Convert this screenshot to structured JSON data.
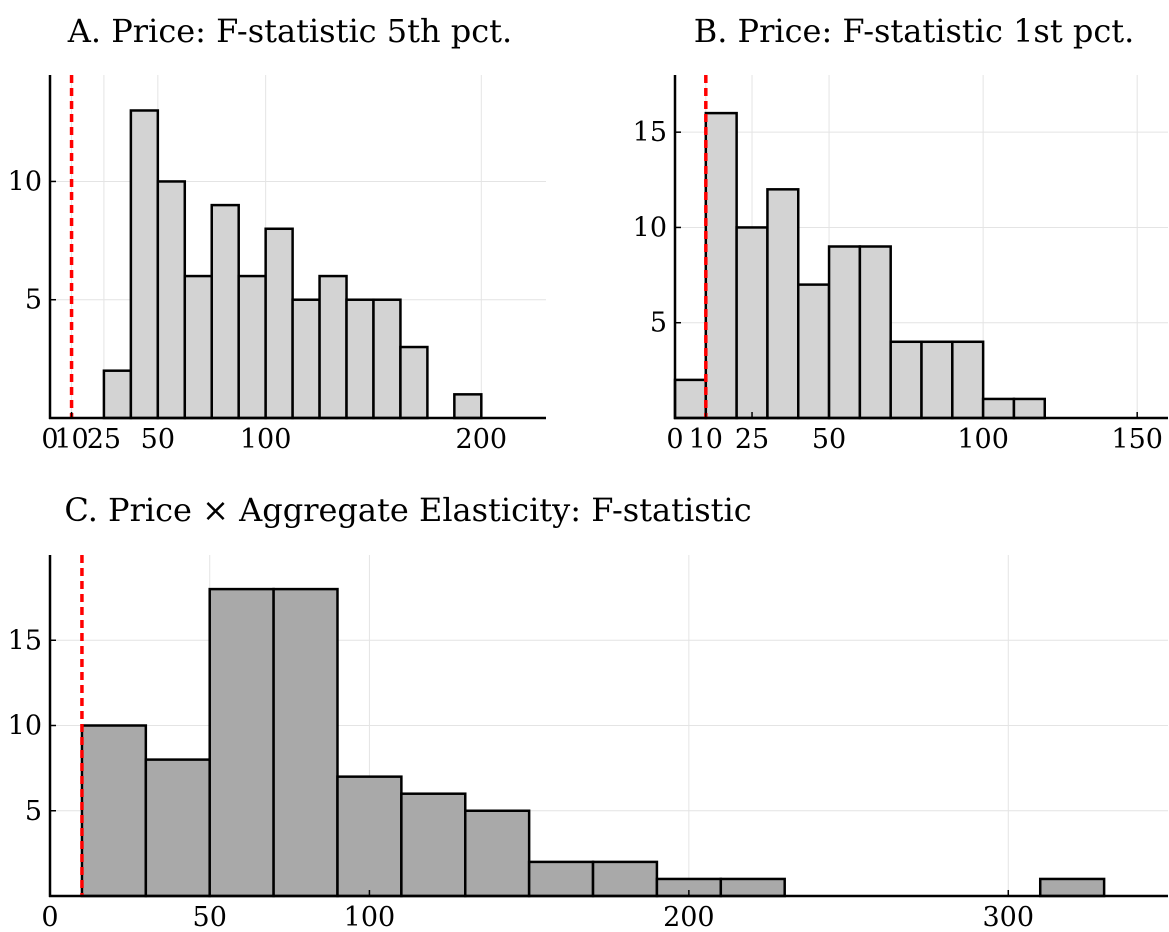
{
  "chart_data": [
    {
      "type": "bar",
      "title": "A. Price: F-statistic 5th pct.",
      "xlabel": "",
      "ylabel": "",
      "xlim": [
        0,
        230
      ],
      "ylim": [
        0,
        14.5
      ],
      "xticks": [
        0,
        10,
        25,
        50,
        100,
        200
      ],
      "xtick_labels": [
        "0",
        "10",
        "25",
        "50",
        "100",
        "200"
      ],
      "yticks": [
        5,
        10
      ],
      "ytick_labels": [
        "5",
        "10"
      ],
      "grid": true,
      "ref_line_x": 10,
      "ref_line_color": "#ff0000",
      "bar_color": "#d3d3d3",
      "bin_edges": [
        25,
        37.5,
        50,
        62.5,
        75,
        87.5,
        100,
        112.5,
        125,
        137.5,
        150,
        162.5,
        175,
        187.5,
        200
      ],
      "values": [
        2,
        13,
        10,
        6,
        9,
        6,
        8,
        5,
        6,
        5,
        5,
        3,
        0,
        1
      ]
    },
    {
      "type": "bar",
      "title": "B. Price: F-statistic 1st pct.",
      "xlabel": "",
      "ylabel": "",
      "xlim": [
        0,
        160
      ],
      "ylim": [
        0,
        18
      ],
      "xticks": [
        0,
        10,
        25,
        50,
        100,
        150
      ],
      "xtick_labels": [
        "0",
        "10",
        "25",
        "50",
        "100",
        "150"
      ],
      "yticks": [
        5,
        10,
        15
      ],
      "ytick_labels": [
        "5",
        "10",
        "15"
      ],
      "grid": true,
      "ref_line_x": 10,
      "ref_line_color": "#ff0000",
      "bar_color": "#d3d3d3",
      "bin_edges": [
        0,
        10,
        20,
        30,
        40,
        50,
        60,
        70,
        80,
        90,
        100,
        110,
        120
      ],
      "values": [
        2,
        16,
        10,
        12,
        7,
        9,
        9,
        4,
        4,
        4,
        1,
        1
      ]
    },
    {
      "type": "bar",
      "title": "C. Price × Aggregate Elasticity: F-statistic",
      "xlabel": "",
      "ylabel": "",
      "xlim": [
        0,
        350
      ],
      "ylim": [
        0,
        20
      ],
      "xticks": [
        0,
        50,
        100,
        200,
        300
      ],
      "xtick_labels": [
        "0",
        "50",
        "100",
        "200",
        "300"
      ],
      "yticks": [
        5,
        10,
        15
      ],
      "ytick_labels": [
        "5",
        "10",
        "15"
      ],
      "grid": true,
      "ref_line_x": 10,
      "ref_line_color": "#ff0000",
      "bar_color": "#a9a9a9",
      "bin_edges": [
        10,
        30,
        50,
        70,
        90,
        110,
        130,
        150,
        170,
        190,
        210,
        230,
        250,
        270,
        290,
        310,
        330
      ],
      "values": [
        10,
        8,
        18,
        18,
        7,
        6,
        5,
        2,
        2,
        1,
        1,
        0,
        0,
        0,
        0,
        1
      ]
    }
  ]
}
